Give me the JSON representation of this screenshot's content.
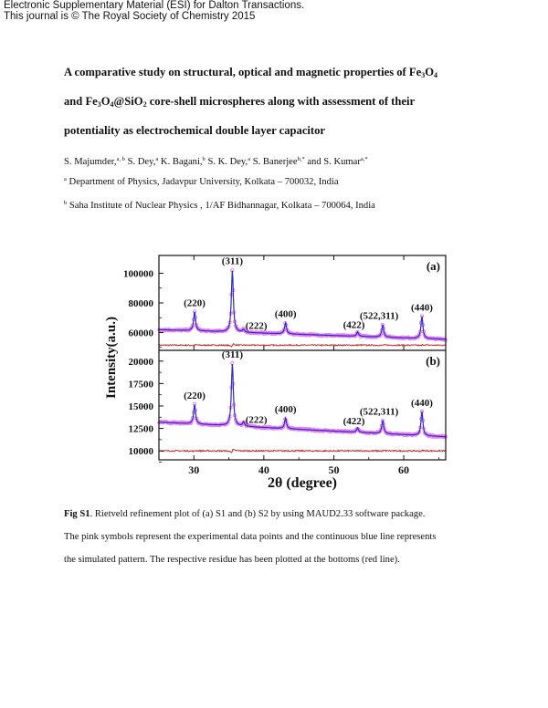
{
  "header": {
    "line1": "Electronic Supplementary Material (ESI) for Dalton Transactions.",
    "line2": "This journal is © The Royal Society of Chemistry 2015"
  },
  "title": {
    "line1_pre": "A comparative study on structural, optical and magnetic properties of Fe",
    "line1_sub1": "3",
    "line1_mid": "O",
    "line1_sub2": "4",
    "line2_a": "and Fe",
    "line2_s1": "3",
    "line2_b": "O",
    "line2_s2": "4",
    "line2_c": "@SiO",
    "line2_s3": "2",
    "line2_d": " core-shell microspheres along with assessment of their",
    "line3": "potentiality as electrochemical double layer capacitor"
  },
  "authors": [
    {
      "name": "S. Majumder,",
      "sup": "a, b"
    },
    {
      "name": " S. Dey,",
      "sup": "a"
    },
    {
      "name": " K. Bagani,",
      "sup": "b"
    },
    {
      "name": " S. K. Dey,",
      "sup": "a"
    },
    {
      "name": " S. Banerjee",
      "sup": "b,*"
    },
    {
      "name": " and S. Kumar",
      "sup": "a,*"
    }
  ],
  "affiliations": [
    {
      "sup": "a",
      "text": " Department of Physics, Jadavpur University, Kolkata – 700032, India"
    },
    {
      "sup": "b",
      "text": " Saha Institute of Nuclear Physics , 1/AF Bidhannagar, Kolkata – 700064, India"
    }
  ],
  "caption": {
    "label": "Fig S1",
    "line1": ". Rietveld refinement plot of (a) S1 and (b) S2 by using MAUD2.33 software package.",
    "line2": "The pink symbols represent the experimental data points and the continuous blue line represents",
    "line3": "the simulated pattern. The respective residue has been plotted at the bottoms (red line)."
  },
  "chart_data": {
    "type": "line",
    "xlabel": "2θ (degree)",
    "ylabel": "Intensity(a.u.)",
    "xlim": [
      25,
      66
    ],
    "xticks": [
      "30",
      "40",
      "50",
      "60"
    ],
    "xtick_values": [
      30,
      40,
      50,
      60
    ],
    "colors": {
      "experimental": "#e87fe8",
      "simulated": "#2a2ad0",
      "residue": "#d42020",
      "frame": "#111111"
    },
    "panels": [
      {
        "label": "(a)",
        "ylim": [
          48000,
          112000
        ],
        "yticks": [
          "60000",
          "80000",
          "100000"
        ],
        "ytick_values": [
          60000,
          80000,
          100000
        ],
        "baseline": 62000,
        "baseline_slope": -160,
        "residue_level": 51500,
        "peaks": [
          {
            "label": "(220)",
            "x": 30.1,
            "height": 13000
          },
          {
            "label": "(311)",
            "x": 35.5,
            "height": 42000
          },
          {
            "label": "(222)",
            "x": 37.1,
            "height": 2000
          },
          {
            "label": "(400)",
            "x": 43.1,
            "height": 7500
          },
          {
            "label": "(422)",
            "x": 53.4,
            "height": 3000
          },
          {
            "label": "(522,311)",
            "x": 57.0,
            "height": 8500
          },
          {
            "label": "(440)",
            "x": 62.6,
            "height": 15000
          }
        ]
      },
      {
        "label": "(b)",
        "ylim": [
          9000,
          21200
        ],
        "yticks": [
          "10000",
          "12500",
          "15000",
          "17500",
          "20000"
        ],
        "ytick_values": [
          10000,
          12500,
          15000,
          17500,
          20000
        ],
        "baseline": 13200,
        "baseline_slope": -40,
        "residue_level": 10000,
        "peaks": [
          {
            "label": "(220)",
            "x": 30.1,
            "height": 2200
          },
          {
            "label": "(311)",
            "x": 35.5,
            "height": 7000
          },
          {
            "label": "(222)",
            "x": 37.1,
            "height": 500
          },
          {
            "label": "(400)",
            "x": 43.1,
            "height": 1200
          },
          {
            "label": "(422)",
            "x": 53.4,
            "height": 500
          },
          {
            "label": "(522,311)",
            "x": 57.0,
            "height": 1500
          },
          {
            "label": "(440)",
            "x": 62.6,
            "height": 2700
          }
        ]
      }
    ]
  }
}
